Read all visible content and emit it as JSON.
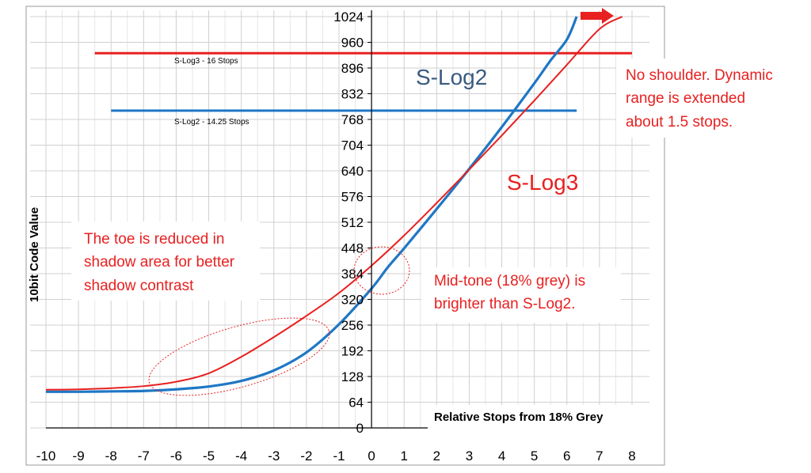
{
  "chart_data": {
    "type": "line",
    "title": "",
    "xlabel": "Relative Stops from 18% Grey",
    "ylabel": "10bit Code Value",
    "xlim": [
      -10,
      8
    ],
    "ylim": [
      0,
      1024
    ],
    "x_ticks": [
      "-10",
      "-9",
      "-8",
      "-7",
      "-6",
      "-5",
      "-4",
      "-3",
      "-2",
      "-1",
      "0",
      "1",
      "2",
      "3",
      "4",
      "5",
      "6",
      "7",
      "8"
    ],
    "y_ticks": [
      "0",
      "64",
      "128",
      "192",
      "256",
      "320",
      "384",
      "448",
      "512",
      "576",
      "640",
      "704",
      "768",
      "832",
      "896",
      "960",
      "1024"
    ],
    "grid": true,
    "series": [
      {
        "name": "S-Log2",
        "color": "#1f77c4",
        "points": [
          [
            -10,
            90
          ],
          [
            -9,
            90
          ],
          [
            -8,
            91
          ],
          [
            -7,
            92
          ],
          [
            -6,
            96
          ],
          [
            -5,
            103
          ],
          [
            -4,
            117
          ],
          [
            -3,
            143
          ],
          [
            -2,
            188
          ],
          [
            -1,
            258
          ],
          [
            0,
            347
          ],
          [
            0.5,
            400
          ],
          [
            1,
            447
          ],
          [
            2,
            545
          ],
          [
            3,
            645
          ],
          [
            4,
            749
          ],
          [
            5,
            858
          ],
          [
            5.5,
            915
          ],
          [
            6,
            967
          ],
          [
            6.3,
            1024
          ]
        ]
      },
      {
        "name": "S-Log3",
        "color": "#e82020",
        "points": [
          [
            -10,
            95
          ],
          [
            -9,
            96
          ],
          [
            -8,
            99
          ],
          [
            -7,
            104
          ],
          [
            -6,
            115
          ],
          [
            -5,
            136
          ],
          [
            -4,
            177
          ],
          [
            -3,
            226
          ],
          [
            -2,
            279
          ],
          [
            -1,
            336
          ],
          [
            0,
            404
          ],
          [
            1,
            479
          ],
          [
            2,
            560
          ],
          [
            3,
            643
          ],
          [
            4,
            728
          ],
          [
            5,
            815
          ],
          [
            6,
            904
          ],
          [
            7,
            993
          ],
          [
            7.7,
            1024
          ]
        ]
      }
    ],
    "reference_lines": [
      {
        "label": "S-Log3 - 16 Stops",
        "y": 933,
        "x": [
          -8.5,
          8
        ],
        "color": "#e82020"
      },
      {
        "label": "S-Log2 - 14.25 Stops",
        "y": 790,
        "x": [
          -8,
          6.3
        ],
        "color": "#1f77c4"
      }
    ],
    "annotations": {
      "slog2": "S-Log2",
      "slog3": "S-Log3",
      "no_shoulder": [
        "No shoulder. Dynamic",
        "range is extended",
        "about 1.5 stops."
      ],
      "toe": [
        "The toe is reduced in",
        "shadow area for better",
        "shadow contrast"
      ],
      "midtone": [
        "Mid-tone (18% grey) is",
        "brighter than S-Log2."
      ]
    },
    "annotation_colors": {
      "slog2_text": "#3a5a80",
      "red_text": "#e82020"
    }
  }
}
